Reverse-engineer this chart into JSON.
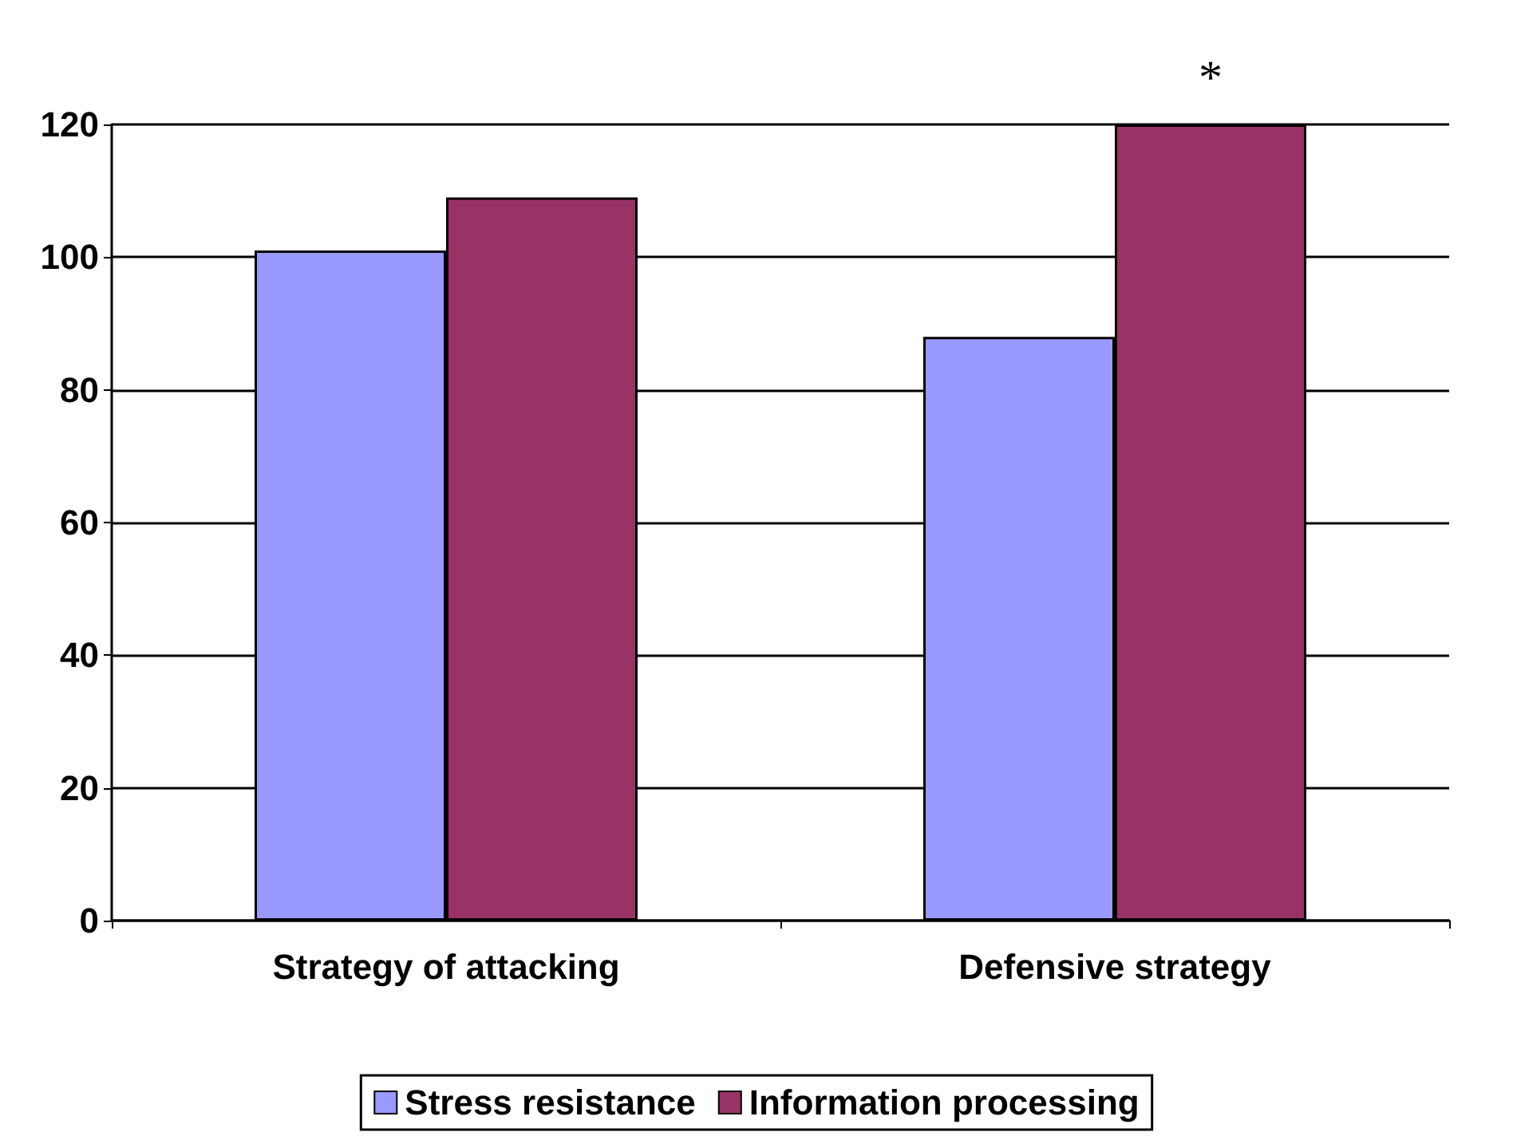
{
  "chart_data": {
    "type": "bar",
    "categories": [
      "Strategy of attacking",
      "Defensive strategy"
    ],
    "series": [
      {
        "name": "Stress resistance",
        "color": "#9999ff",
        "values": [
          101,
          88
        ]
      },
      {
        "name": "Information processing",
        "color": "#993366",
        "values": [
          109,
          120
        ]
      }
    ],
    "ylim": [
      0,
      120
    ],
    "yticks": [
      0,
      20,
      40,
      60,
      80,
      100,
      120
    ],
    "grid": "y",
    "legend": "bottom",
    "annotations": [
      {
        "text": "*",
        "x": "Defensive strategy",
        "y": 120
      }
    ]
  }
}
